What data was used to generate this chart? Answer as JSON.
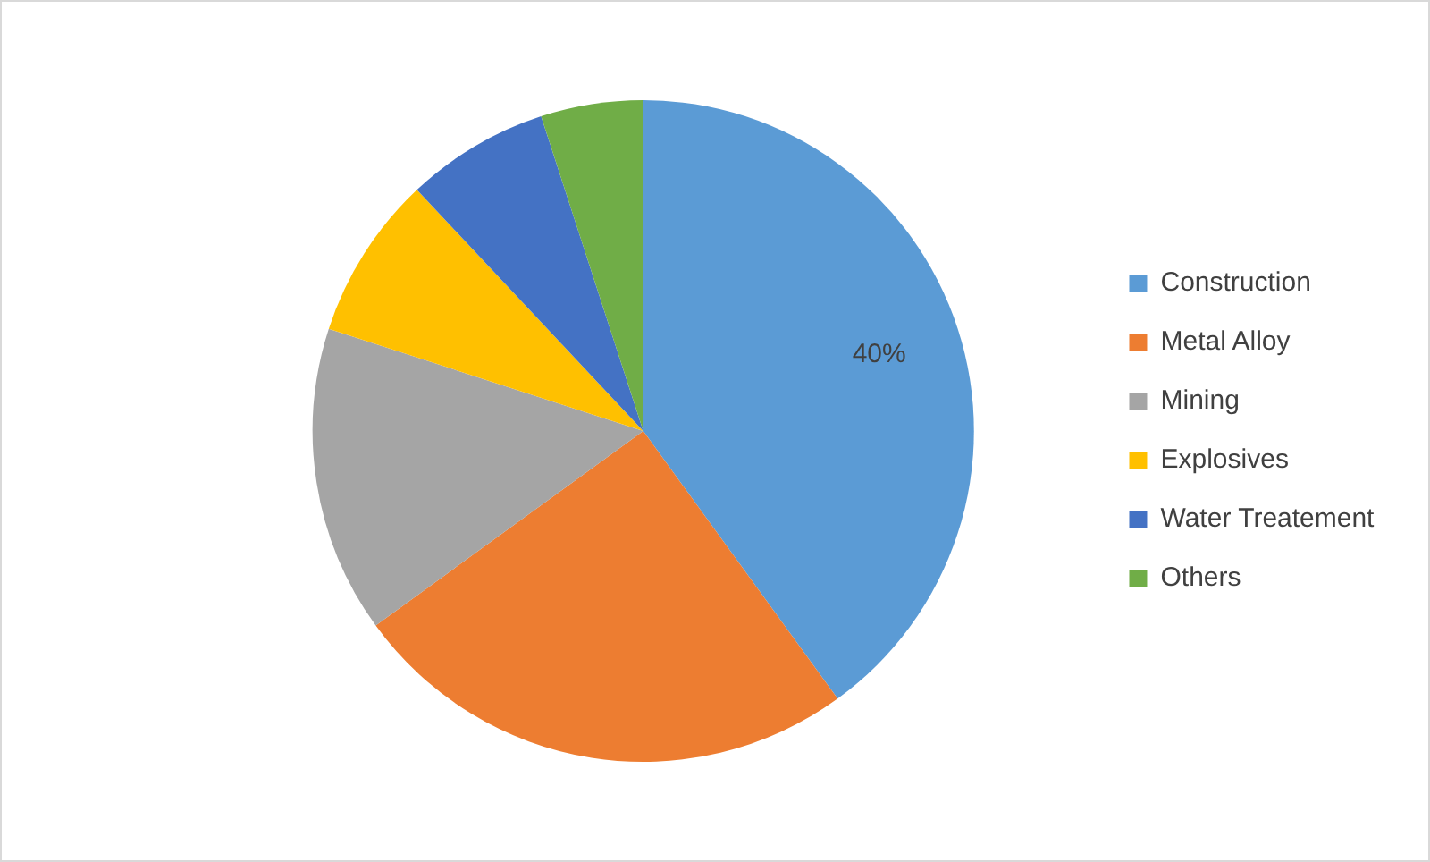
{
  "chart_data": {
    "type": "pie",
    "categories": [
      "Construction",
      "Metal Alloy",
      "Mining",
      "Explosives",
      "Water Treatement",
      "Others"
    ],
    "values": [
      40,
      25,
      15,
      8,
      7,
      5
    ],
    "colors": [
      "#5b9bd5",
      "#ed7d31",
      "#a5a5a5",
      "#ffc000",
      "#4472c4",
      "#70ad47"
    ],
    "value_labels": [
      "40%",
      null,
      null,
      null,
      null,
      null
    ],
    "legend": "right"
  }
}
